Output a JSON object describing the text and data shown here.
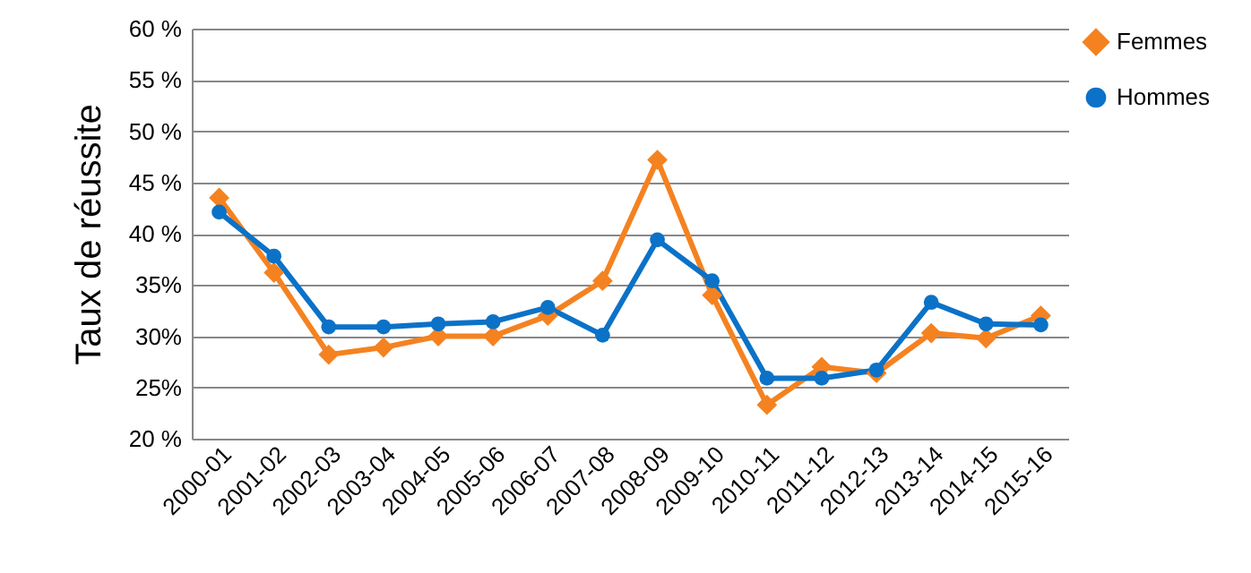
{
  "chart_data": {
    "type": "line",
    "ylabel": "Taux de réussite",
    "categories": [
      "2000-01",
      "2001-02",
      "2002-03",
      "2003-04",
      "2004-05",
      "2005-06",
      "2006-07",
      "2007-08",
      "2008-09",
      "2009-10",
      "2010-11",
      "2011-12",
      "2012-13",
      "2013-14",
      "2014-15",
      "2015-16"
    ],
    "series": [
      {
        "name": "Femmes",
        "color": "#f58220",
        "marker": "diamond",
        "values": [
          43.5,
          36.2,
          28.2,
          28.9,
          30.0,
          30.0,
          32.0,
          35.4,
          47.2,
          34.0,
          23.3,
          27.0,
          26.4,
          30.3,
          29.8,
          32.0
        ]
      },
      {
        "name": "Hommes",
        "color": "#0b72c7",
        "marker": "circle",
        "values": [
          42.1,
          37.8,
          30.9,
          30.9,
          31.2,
          31.4,
          32.8,
          30.1,
          39.4,
          35.4,
          25.9,
          25.9,
          26.7,
          33.3,
          31.2,
          31.1
        ]
      }
    ],
    "ylim": [
      20,
      60
    ],
    "yticks": [
      {
        "value": 20,
        "label": "20 %"
      },
      {
        "value": 25,
        "label": "25%"
      },
      {
        "value": 30,
        "label": "30%"
      },
      {
        "value": 35,
        "label": "35%"
      },
      {
        "value": 40,
        "label": "40 %"
      },
      {
        "value": 45,
        "label": "45 %"
      },
      {
        "value": 50,
        "label": "50 %"
      },
      {
        "value": 55,
        "label": "55 %"
      },
      {
        "value": 60,
        "label": "60 %"
      }
    ],
    "grid": "y",
    "legend": "right",
    "line_style": "solid"
  }
}
